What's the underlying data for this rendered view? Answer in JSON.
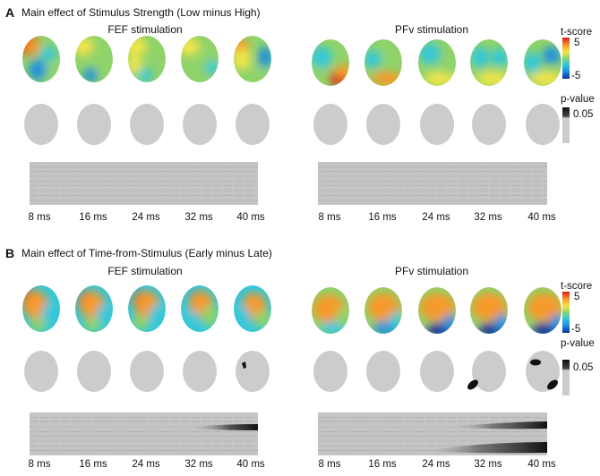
{
  "panels": [
    {
      "letter": "A",
      "title": "Main effect of Stimulus Strength (Low minus High)",
      "conditions": [
        {
          "name": "FEF stimulation",
          "times": [
            "8 ms",
            "16 ms",
            "24 ms",
            "32 ms",
            "40 ms"
          ]
        },
        {
          "name": "PFv stimulation",
          "times": [
            "8 ms",
            "16 ms",
            "24 ms",
            "32 ms",
            "40 ms"
          ]
        }
      ],
      "tscore": {
        "label": "t-score",
        "max": "5",
        "min": "-5"
      },
      "pvalue": {
        "label": "p-value",
        "threshold": "0.05"
      }
    },
    {
      "letter": "B",
      "title": "Main effect of Time-from-Stimulus (Early minus Late)",
      "conditions": [
        {
          "name": "FEF stimulation",
          "times": [
            "8 ms",
            "16 ms",
            "24 ms",
            "32 ms",
            "40 ms"
          ]
        },
        {
          "name": "PFv stimulation",
          "times": [
            "8 ms",
            "16 ms",
            "24 ms",
            "32 ms",
            "40 ms"
          ]
        }
      ],
      "tscore": {
        "label": "t-score",
        "max": "5",
        "min": "-5"
      },
      "pvalue": {
        "label": "p-value",
        "threshold": "0.05"
      }
    }
  ],
  "colors": {
    "mask_gray": "#cccccc",
    "raster_bg": "#c4c4c4",
    "significant": "#111111",
    "colormap": [
      "#0b2d9c",
      "#1e90e0",
      "#34c7d8",
      "#8fd36a",
      "#f4e54a",
      "#f69a2b",
      "#d7191c"
    ]
  }
}
